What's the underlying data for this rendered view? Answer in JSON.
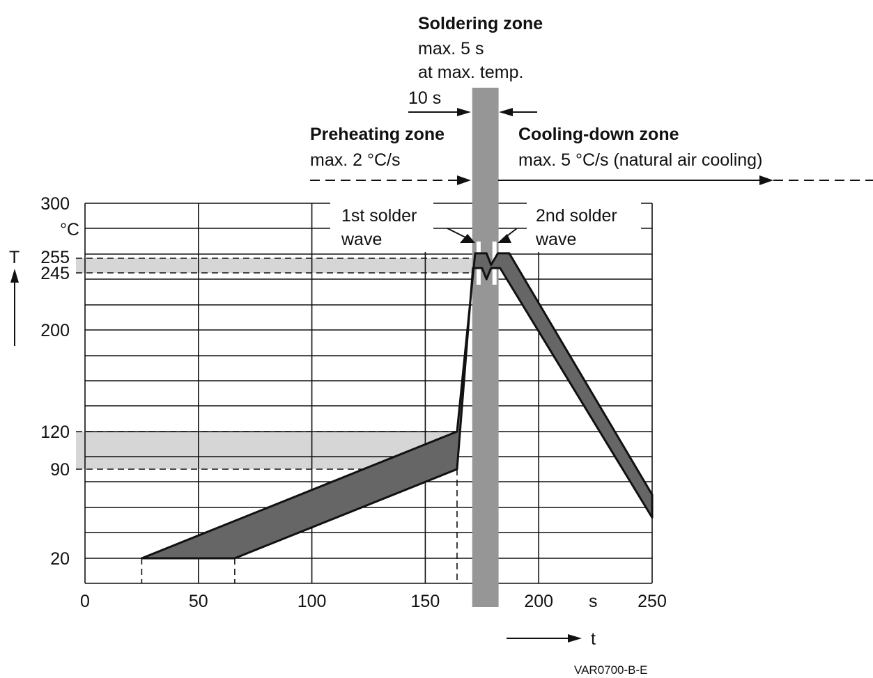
{
  "chart_data": {
    "type": "line",
    "title": "",
    "xlabel": "t",
    "x_unit": "s",
    "ylabel": "T",
    "y_unit": "°C",
    "xlim": [
      0,
      250
    ],
    "ylim": [
      0,
      300
    ],
    "x_ticks": [
      "0",
      "50",
      "100",
      "150",
      "200",
      "250"
    ],
    "y_ticks": [
      "20",
      "90",
      "120",
      "200",
      "245",
      "255",
      "300"
    ],
    "grid": true,
    "series": [
      {
        "name": "",
        "fill": "#666666",
        "upper": [
          [
            25,
            20
          ],
          [
            164,
            120
          ],
          [
            172,
            258
          ],
          [
            177,
            258
          ],
          [
            179,
            250
          ],
          [
            182,
            258
          ],
          [
            187,
            258
          ],
          [
            250,
            70
          ]
        ],
        "lower": [
          [
            25,
            20
          ],
          [
            66,
            20
          ],
          [
            164,
            90
          ],
          [
            171,
            248
          ],
          [
            175,
            248
          ],
          [
            177,
            240
          ],
          [
            179,
            248
          ],
          [
            183,
            248
          ],
          [
            250,
            52
          ]
        ]
      }
    ],
    "bands": {
      "preheat_range": [
        90,
        120
      ],
      "solder_range": [
        245,
        255
      ],
      "solder_zone_time": [
        171,
        182
      ]
    },
    "annotations": {
      "soldering_zone_title": "Soldering zone",
      "soldering_zone_line1": "max. 5 s",
      "soldering_zone_line2": "at max. temp.",
      "time_span": "10 s",
      "preheating_title": "Preheating zone",
      "preheating_rate": "max. 2 °C/s",
      "cooling_title": "Cooling-down zone",
      "cooling_rate": "max. 5 °C/s (natural air cooling)",
      "wave1_line1": "1st solder",
      "wave1_line2": "wave",
      "wave2_line1": "2nd solder",
      "wave2_line2": "wave"
    },
    "footer": "VAR0700-B-E"
  },
  "colors": {
    "profile_fill": "#666666",
    "band_fill": "#d6d6d6",
    "zone_fill": "#969696",
    "line": "#111111"
  }
}
